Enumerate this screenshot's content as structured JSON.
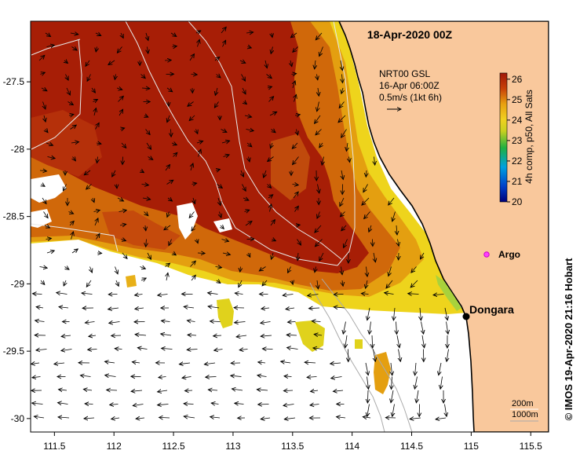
{
  "title": "18-Apr-2020 00Z",
  "current_legend": {
    "line1": "NRT00 GSL",
    "line2": "16-Apr 06:00Z",
    "line3": "0.5m/s (1kt 6h)"
  },
  "colorbar": {
    "label": "4h comp, p50, All Sats",
    "ticks": [
      "20",
      "21",
      "22",
      "23",
      "24",
      "25",
      "26"
    ],
    "min": 20,
    "max": 26.3
  },
  "places": {
    "argo": "Argo",
    "dongara": "Dongara"
  },
  "depth_legend": {
    "line1": "200m",
    "line2": "1000m"
  },
  "credit": "© IMOS 19-Apr-2020 21:16 Hobart",
  "axes": {
    "x_ticks": [
      "111.5",
      "112",
      "112.5",
      "113",
      "113.5",
      "114",
      "114.5",
      "115",
      "115.5"
    ],
    "y_ticks": [
      "-27.5",
      "-28",
      "-28.5",
      "-29",
      "-29.5",
      "-30"
    ],
    "x_range": [
      111.3,
      115.65
    ],
    "y_range": [
      -30.1,
      -27.05
    ]
  },
  "colors": {
    "land": "#f9c89c",
    "sst_hot": "#a71e06",
    "sst_mid": "#d0680a",
    "sst_warm": "#e49f10",
    "sst_cool": "#eed41c",
    "arrow": "#000000"
  }
}
